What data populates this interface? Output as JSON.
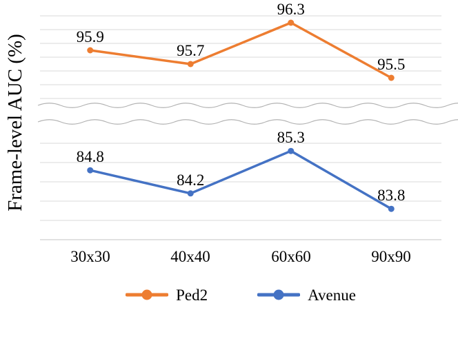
{
  "chart_data": {
    "type": "line",
    "title": "",
    "xlabel": "",
    "ylabel": "Frame-level AUC (%)",
    "categories": [
      "30x30",
      "40x40",
      "60x60",
      "90x90"
    ],
    "series": [
      {
        "name": "Ped2",
        "color": "#ED7D31",
        "axis_section": "top",
        "values": [
          95.9,
          95.7,
          96.3,
          95.5
        ],
        "point_labels": [
          "95.9",
          "95.7",
          "96.3",
          "95.5"
        ]
      },
      {
        "name": "Avenue",
        "color": "#4472C4",
        "axis_section": "bottom",
        "values": [
          84.8,
          84.2,
          85.3,
          83.8
        ],
        "point_labels": [
          "84.8",
          "84.2",
          "85.3",
          "83.8"
        ]
      }
    ],
    "axis_break": true,
    "top_axis": {
      "ymin": 95.2,
      "ymax": 96.4,
      "grid_step": 0.2
    },
    "bottom_axis": {
      "ymin": 83.0,
      "ymax": 85.5,
      "grid_step": 0.5
    },
    "grid": true,
    "legend_position": "bottom",
    "colors": {
      "gridline": "#D9D9D9",
      "axis_line": "#C3C3C3",
      "break_wave": "#B2B2B2",
      "label_text": "#000000"
    }
  }
}
